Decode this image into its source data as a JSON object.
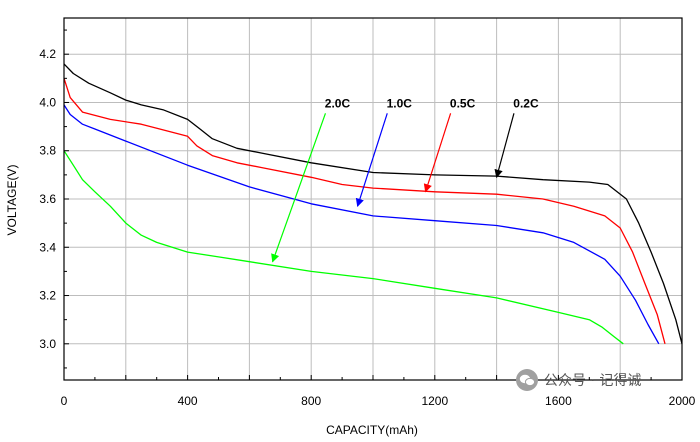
{
  "chart_data": {
    "type": "line",
    "title": "",
    "xlabel": "CAPACITY(mAh)",
    "ylabel": "VOLTAGE(V)",
    "xlim": [
      0,
      2000
    ],
    "ylim": [
      2.85,
      4.35
    ],
    "x_ticks": [
      "0",
      "400",
      "800",
      "1200",
      "1600",
      "2000"
    ],
    "y_ticks": [
      "3.0",
      "3.2",
      "3.4",
      "3.6",
      "3.8",
      "4.0",
      "4.2"
    ],
    "grid": true,
    "series": [
      {
        "name": "0.2C",
        "color": "#000000",
        "label_pos": [
          1495,
          3.98
        ],
        "arrow_to": [
          1400,
          3.69
        ],
        "points": [
          [
            0,
            4.16
          ],
          [
            30,
            4.12
          ],
          [
            80,
            4.08
          ],
          [
            150,
            4.04
          ],
          [
            200,
            4.01
          ],
          [
            250,
            3.99
          ],
          [
            320,
            3.97
          ],
          [
            400,
            3.93
          ],
          [
            440,
            3.89
          ],
          [
            480,
            3.85
          ],
          [
            560,
            3.81
          ],
          [
            640,
            3.79
          ],
          [
            800,
            3.75
          ],
          [
            1000,
            3.71
          ],
          [
            1200,
            3.7
          ],
          [
            1400,
            3.695
          ],
          [
            1550,
            3.68
          ],
          [
            1700,
            3.67
          ],
          [
            1760,
            3.66
          ],
          [
            1820,
            3.6
          ],
          [
            1860,
            3.5
          ],
          [
            1900,
            3.38
          ],
          [
            1940,
            3.25
          ],
          [
            1980,
            3.1
          ],
          [
            2000,
            3.0
          ]
        ]
      },
      {
        "name": "0.5C",
        "color": "#ff0000",
        "label_pos": [
          1290,
          3.98
        ],
        "arrow_to": [
          1170,
          3.63
        ],
        "points": [
          [
            0,
            4.1
          ],
          [
            20,
            4.02
          ],
          [
            60,
            3.96
          ],
          [
            150,
            3.93
          ],
          [
            250,
            3.91
          ],
          [
            400,
            3.86
          ],
          [
            430,
            3.82
          ],
          [
            480,
            3.78
          ],
          [
            560,
            3.75
          ],
          [
            640,
            3.73
          ],
          [
            800,
            3.69
          ],
          [
            900,
            3.66
          ],
          [
            1000,
            3.645
          ],
          [
            1200,
            3.63
          ],
          [
            1400,
            3.62
          ],
          [
            1550,
            3.6
          ],
          [
            1650,
            3.57
          ],
          [
            1750,
            3.53
          ],
          [
            1800,
            3.48
          ],
          [
            1840,
            3.38
          ],
          [
            1880,
            3.25
          ],
          [
            1920,
            3.12
          ],
          [
            1945,
            3.0
          ]
        ]
      },
      {
        "name": "1.0C",
        "color": "#0000ff",
        "label_pos": [
          1085,
          3.98
        ],
        "arrow_to": [
          950,
          3.57
        ],
        "points": [
          [
            0,
            3.99
          ],
          [
            20,
            3.95
          ],
          [
            60,
            3.91
          ],
          [
            100,
            3.89
          ],
          [
            200,
            3.84
          ],
          [
            400,
            3.74
          ],
          [
            600,
            3.65
          ],
          [
            800,
            3.58
          ],
          [
            1000,
            3.53
          ],
          [
            1200,
            3.51
          ],
          [
            1400,
            3.49
          ],
          [
            1550,
            3.46
          ],
          [
            1650,
            3.42
          ],
          [
            1750,
            3.35
          ],
          [
            1800,
            3.28
          ],
          [
            1850,
            3.18
          ],
          [
            1890,
            3.08
          ],
          [
            1925,
            3.0
          ]
        ]
      },
      {
        "name": "2.0C",
        "color": "#00ff00",
        "label_pos": [
          885,
          3.98
        ],
        "arrow_to": [
          675,
          3.34
        ],
        "points": [
          [
            0,
            3.8
          ],
          [
            30,
            3.74
          ],
          [
            60,
            3.68
          ],
          [
            100,
            3.63
          ],
          [
            150,
            3.57
          ],
          [
            200,
            3.5
          ],
          [
            250,
            3.45
          ],
          [
            300,
            3.42
          ],
          [
            400,
            3.38
          ],
          [
            500,
            3.36
          ],
          [
            600,
            3.34
          ],
          [
            800,
            3.3
          ],
          [
            1000,
            3.27
          ],
          [
            1200,
            3.23
          ],
          [
            1400,
            3.19
          ],
          [
            1600,
            3.13
          ],
          [
            1700,
            3.1
          ],
          [
            1740,
            3.07
          ],
          [
            1780,
            3.03
          ],
          [
            1810,
            3.0
          ]
        ]
      }
    ]
  },
  "watermark": {
    "icon": "wechat-icon",
    "text": "公众号 · 记得诚"
  }
}
